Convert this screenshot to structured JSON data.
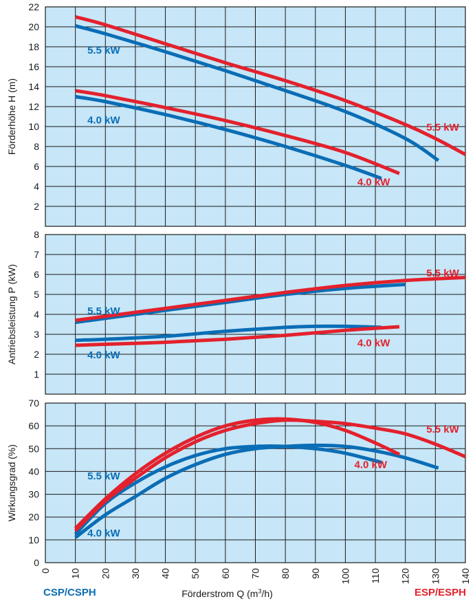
{
  "footer": {
    "left_label": "CSP/CSPH",
    "right_label": "ESP/ESPH",
    "xlabel_main": "Förderstrom Q (m",
    "xlabel_sup": "3",
    "xlabel_end": "/h)"
  },
  "colors": {
    "blue": "#0a6db5",
    "red": "#e3212d",
    "plot_bg": "#c7e6f7",
    "grid": "#1a1a1a"
  },
  "chart_data": [
    {
      "type": "line",
      "id": "head",
      "ylabel": "Förderhöhe H (m)",
      "xlim": [
        0,
        140
      ],
      "ylim": [
        0,
        22
      ],
      "x_ticks": [],
      "y_ticks": [
        2,
        4,
        6,
        8,
        10,
        12,
        14,
        16,
        18,
        20,
        22
      ],
      "grid": true,
      "series": [
        {
          "name": "CSP/CSPH 5.5 kW",
          "color": "blue",
          "points": [
            [
              10,
              20.1
            ],
            [
              20,
              19.3
            ],
            [
              40,
              17.5
            ],
            [
              60,
              15.6
            ],
            [
              80,
              13.6
            ],
            [
              100,
              11.5
            ],
            [
              120,
              8.8
            ],
            [
              131,
              6.6
            ]
          ]
        },
        {
          "name": "ESP/ESPH 5.5 kW",
          "color": "red",
          "points": [
            [
              10,
              21.0
            ],
            [
              20,
              20.2
            ],
            [
              40,
              18.3
            ],
            [
              60,
              16.4
            ],
            [
              80,
              14.6
            ],
            [
              100,
              12.6
            ],
            [
              120,
              10.2
            ],
            [
              130,
              8.8
            ],
            [
              140,
              7.2
            ]
          ]
        },
        {
          "name": "CSP/CSPH 4.0 kW",
          "color": "blue",
          "points": [
            [
              10,
              13.0
            ],
            [
              20,
              12.5
            ],
            [
              40,
              11.2
            ],
            [
              60,
              9.7
            ],
            [
              80,
              8.0
            ],
            [
              100,
              6.1
            ],
            [
              112,
              4.8
            ]
          ]
        },
        {
          "name": "ESP/ESPH 4.0 kW",
          "color": "red",
          "points": [
            [
              10,
              13.6
            ],
            [
              20,
              13.1
            ],
            [
              40,
              11.9
            ],
            [
              60,
              10.6
            ],
            [
              80,
              9.1
            ],
            [
              100,
              7.4
            ],
            [
              118,
              5.3
            ]
          ]
        }
      ],
      "annotations": [
        {
          "text": "5.5 kW",
          "color": "blue",
          "x": 14,
          "y": 17.3
        },
        {
          "text": "4.0 kW",
          "color": "blue",
          "x": 14,
          "y": 10.3
        },
        {
          "text": "5.5 kW",
          "color": "red",
          "x": 127,
          "y": 9.6
        },
        {
          "text": "4.0 kW",
          "color": "red",
          "x": 104,
          "y": 4.1
        }
      ]
    },
    {
      "type": "line",
      "id": "power",
      "ylabel": "Antriebsleistung P (kW)",
      "xlim": [
        0,
        140
      ],
      "ylim": [
        0,
        8
      ],
      "x_ticks": [],
      "y_ticks": [
        1,
        2,
        3,
        4,
        5,
        6,
        7,
        8
      ],
      "grid": true,
      "series": [
        {
          "name": "CSP/CSPH 5.5 kW",
          "color": "blue",
          "points": [
            [
              10,
              3.6
            ],
            [
              20,
              3.8
            ],
            [
              40,
              4.2
            ],
            [
              60,
              4.6
            ],
            [
              80,
              5.0
            ],
            [
              100,
              5.3
            ],
            [
              120,
              5.5
            ]
          ]
        },
        {
          "name": "ESP/ESPH 5.5 kW",
          "color": "red",
          "points": [
            [
              10,
              3.7
            ],
            [
              20,
              3.9
            ],
            [
              40,
              4.3
            ],
            [
              60,
              4.7
            ],
            [
              80,
              5.1
            ],
            [
              100,
              5.45
            ],
            [
              120,
              5.7
            ],
            [
              140,
              5.85
            ]
          ]
        },
        {
          "name": "CSP/CSPH 4.0 kW",
          "color": "blue",
          "points": [
            [
              10,
              2.7
            ],
            [
              20,
              2.75
            ],
            [
              40,
              2.9
            ],
            [
              60,
              3.15
            ],
            [
              80,
              3.35
            ],
            [
              90,
              3.4
            ],
            [
              100,
              3.4
            ],
            [
              112,
              3.35
            ]
          ]
        },
        {
          "name": "ESP/ESPH 4.0 kW",
          "color": "red",
          "points": [
            [
              10,
              2.45
            ],
            [
              20,
              2.5
            ],
            [
              40,
              2.6
            ],
            [
              60,
              2.75
            ],
            [
              80,
              2.95
            ],
            [
              100,
              3.2
            ],
            [
              118,
              3.38
            ]
          ]
        }
      ],
      "annotations": [
        {
          "text": "5.5 kW",
          "color": "blue",
          "x": 14,
          "y": 4.0
        },
        {
          "text": "4.0 kW",
          "color": "blue",
          "x": 14,
          "y": 1.8
        },
        {
          "text": "5.5 kW",
          "color": "red",
          "x": 127,
          "y": 5.9
        },
        {
          "text": "4.0 kW",
          "color": "red",
          "x": 104,
          "y": 2.4
        }
      ]
    },
    {
      "type": "line",
      "id": "efficiency",
      "ylabel": "Wirkungsgrad (%)",
      "xlim": [
        0,
        140
      ],
      "ylim": [
        0,
        70
      ],
      "x_ticks": [
        0,
        10,
        20,
        30,
        40,
        50,
        60,
        70,
        80,
        90,
        100,
        110,
        120,
        130,
        140
      ],
      "y_ticks": [
        0,
        10,
        20,
        30,
        40,
        50,
        60,
        70
      ],
      "grid": true,
      "series": [
        {
          "name": "CSP/CSPH 5.5 kW",
          "color": "blue",
          "points": [
            [
              10,
              11
            ],
            [
              20,
              21
            ],
            [
              30,
              29
            ],
            [
              40,
              37
            ],
            [
              50,
              43
            ],
            [
              60,
              47.5
            ],
            [
              70,
              50
            ],
            [
              80,
              51
            ],
            [
              90,
              51.5
            ],
            [
              100,
              51
            ],
            [
              110,
              49
            ],
            [
              120,
              46
            ],
            [
              131,
              41.5
            ]
          ]
        },
        {
          "name": "CSP/CSPH 4.0 kW",
          "color": "blue",
          "points": [
            [
              10,
              12.5
            ],
            [
              20,
              26
            ],
            [
              30,
              35
            ],
            [
              40,
              42
            ],
            [
              50,
              47
            ],
            [
              60,
              50
            ],
            [
              70,
              51
            ],
            [
              80,
              51
            ],
            [
              90,
              50
            ],
            [
              100,
              48
            ],
            [
              112,
              44
            ]
          ]
        },
        {
          "name": "ESP/ESPH 5.5 kW",
          "color": "red",
          "points": [
            [
              10,
              14
            ],
            [
              20,
              27
            ],
            [
              30,
              37
            ],
            [
              40,
              46
            ],
            [
              50,
              53
            ],
            [
              60,
              58
            ],
            [
              70,
              61
            ],
            [
              80,
              62.5
            ],
            [
              90,
              62
            ],
            [
              100,
              61
            ],
            [
              110,
              59
            ],
            [
              120,
              56.5
            ],
            [
              130,
              52
            ],
            [
              140,
              46.5
            ]
          ]
        },
        {
          "name": "ESP/ESPH 4.0 kW",
          "color": "red",
          "points": [
            [
              10,
              15
            ],
            [
              20,
              28
            ],
            [
              30,
              39
            ],
            [
              40,
              48
            ],
            [
              50,
              55
            ],
            [
              60,
              60
            ],
            [
              70,
              62.5
            ],
            [
              80,
              63
            ],
            [
              90,
              61.5
            ],
            [
              100,
              58
            ],
            [
              110,
              52.5
            ],
            [
              118,
              47.5
            ]
          ]
        }
      ],
      "annotations": [
        {
          "text": "5.5 kW",
          "color": "blue",
          "x": 14,
          "y": 36.5
        },
        {
          "text": "4.0 kW",
          "color": "blue",
          "x": 14,
          "y": 11.5
        },
        {
          "text": "5.5 kW",
          "color": "red",
          "x": 127,
          "y": 57
        },
        {
          "text": "4.0 kW",
          "color": "red",
          "x": 103,
          "y": 41.5
        }
      ]
    }
  ]
}
